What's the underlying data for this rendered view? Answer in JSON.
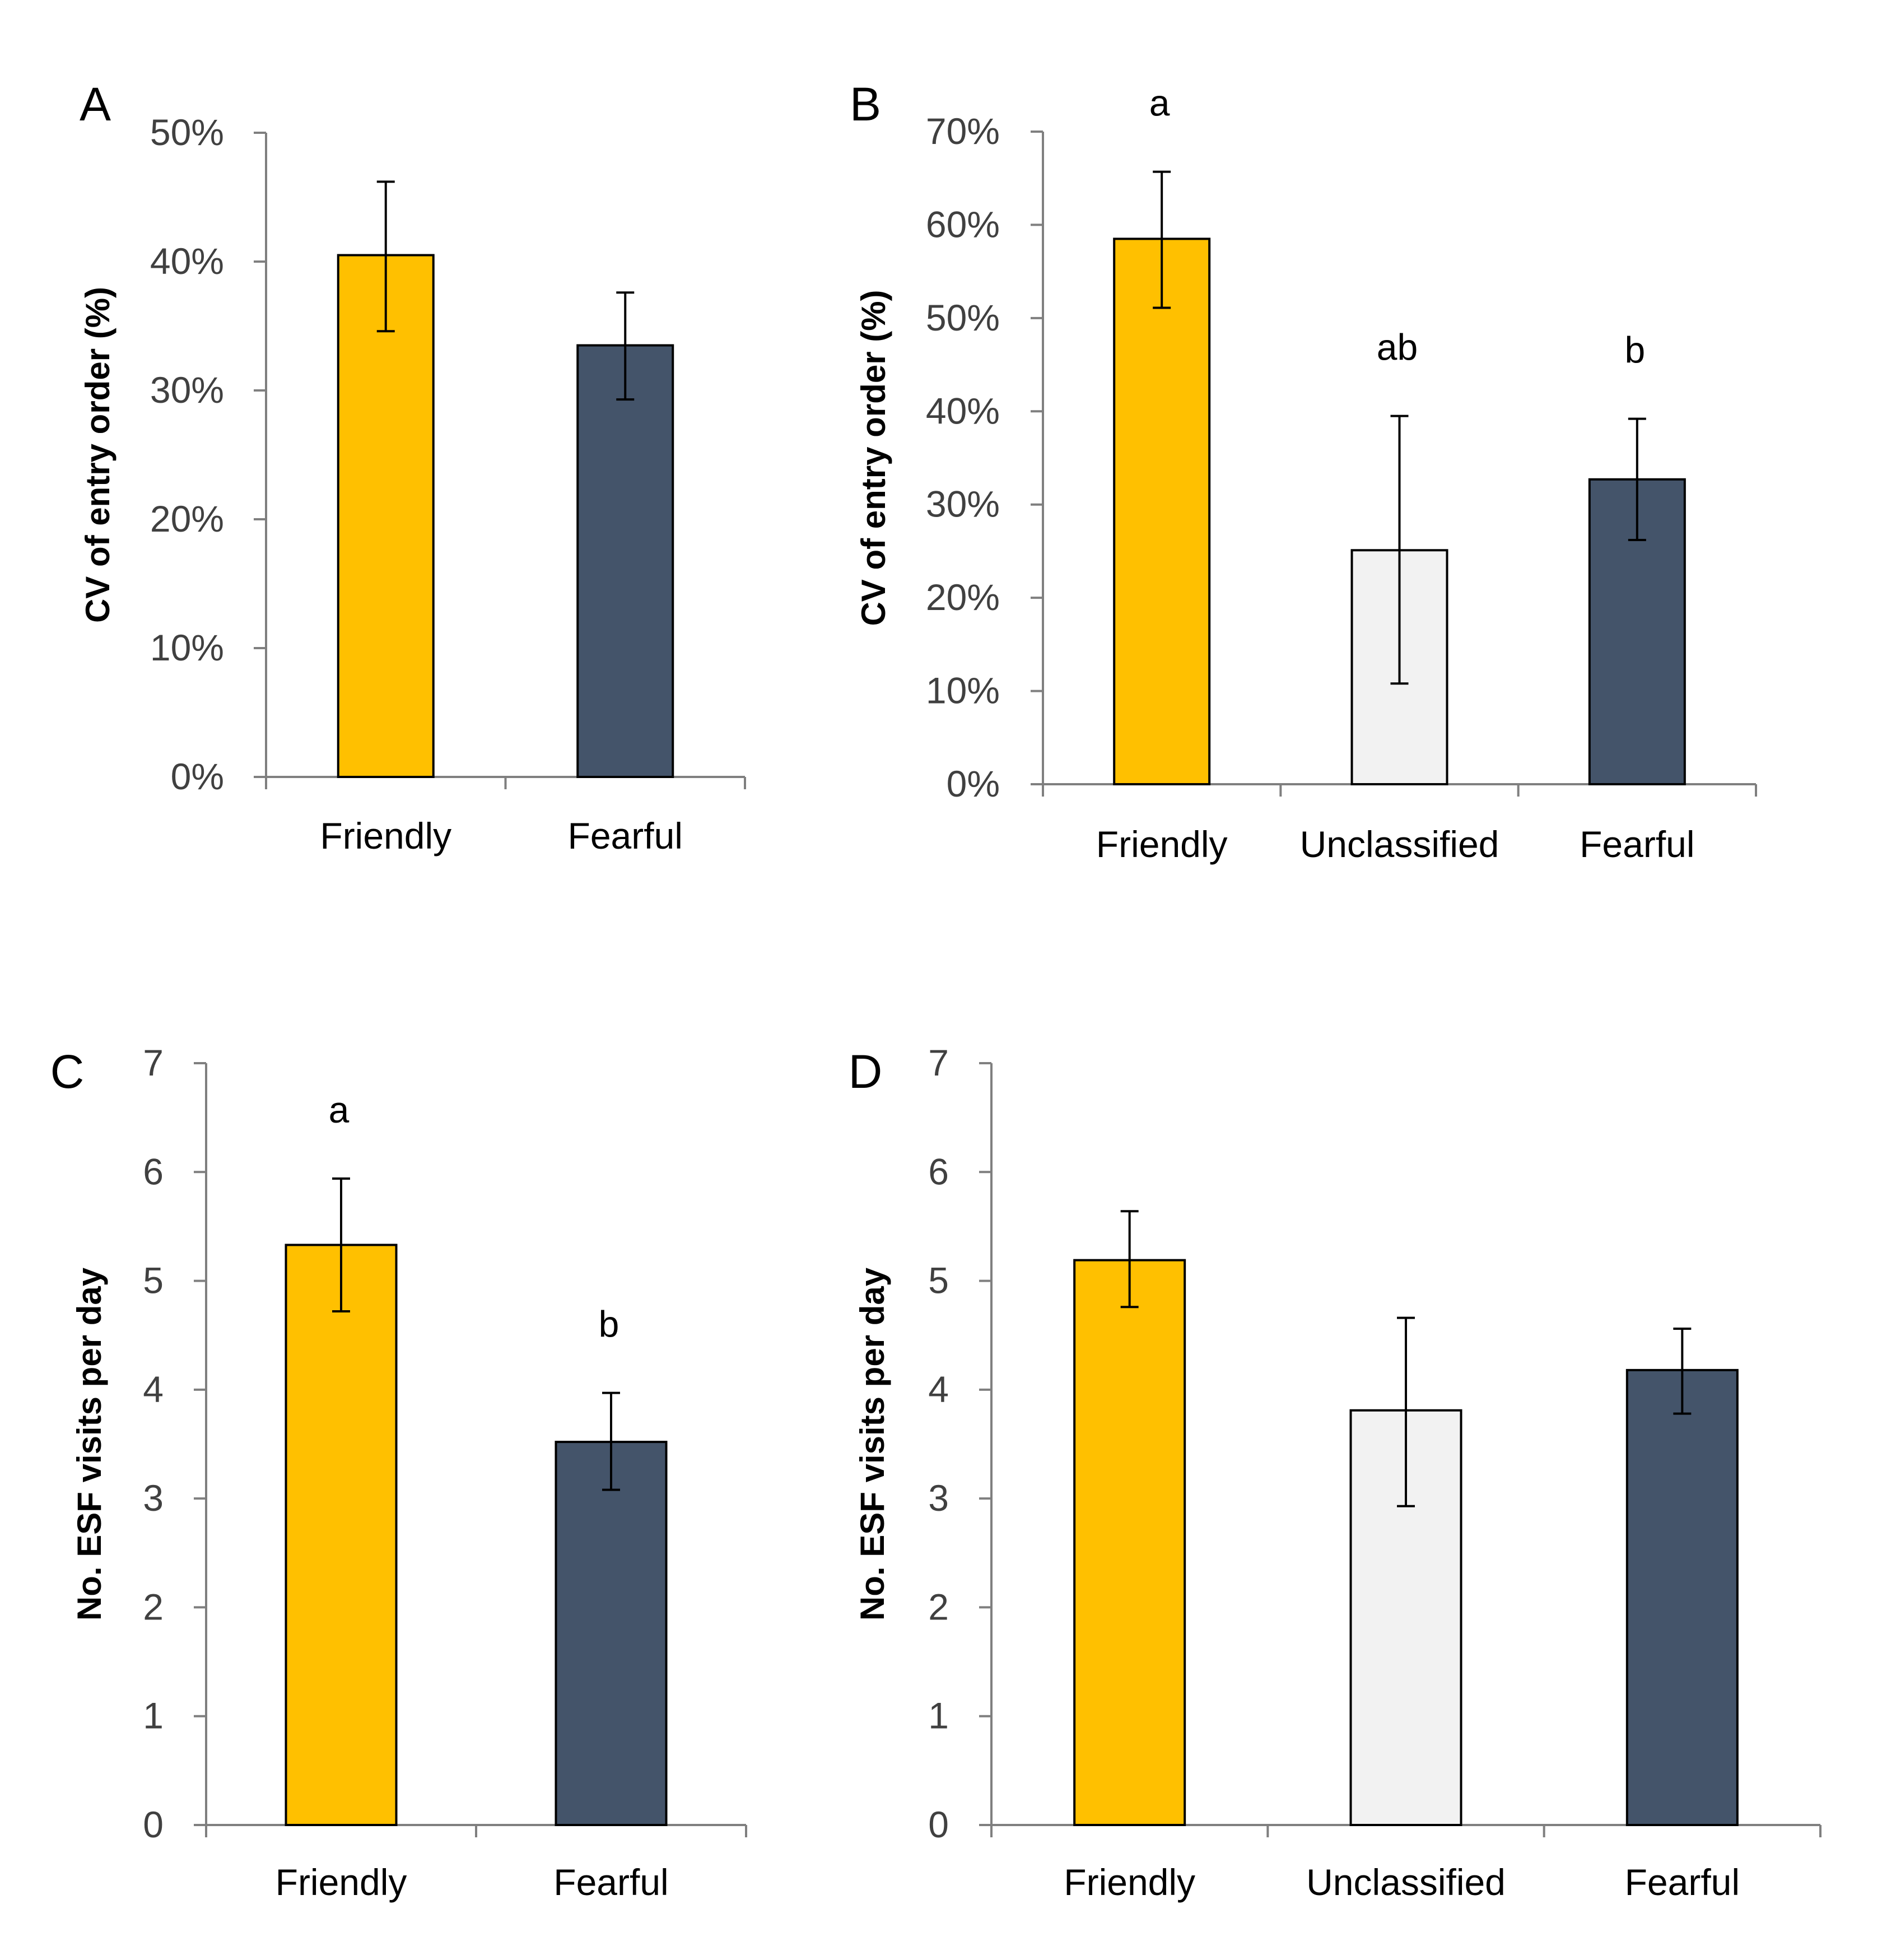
{
  "chart_data": [
    {
      "panel": "A",
      "type": "bar",
      "ylabel": "CV of entry order (%)",
      "ylim": [
        0,
        50
      ],
      "yticks": [
        0,
        10,
        20,
        30,
        40,
        50
      ],
      "ytick_labels": [
        "0%",
        "10%",
        "20%",
        "30%",
        "40%",
        "50%"
      ],
      "categories": [
        "Friendly",
        "Fearful"
      ],
      "values": [
        40.5,
        33.5
      ],
      "err_low": [
        34.6,
        29.3
      ],
      "err_high": [
        46.2,
        37.6
      ],
      "colors": [
        "#FFC000",
        "#44546A"
      ],
      "sig_letters": [
        "",
        ""
      ]
    },
    {
      "panel": "B",
      "type": "bar",
      "ylabel": "CV of entry order (%)",
      "ylim": [
        0,
        70
      ],
      "yticks": [
        0,
        10,
        20,
        30,
        40,
        50,
        60,
        70
      ],
      "ytick_labels": [
        "0%",
        "10%",
        "20%",
        "30%",
        "40%",
        "50%",
        "60%",
        "70%"
      ],
      "categories": [
        "Friendly",
        "Unclassified",
        "Fearful"
      ],
      "values": [
        58.5,
        25.1,
        32.7
      ],
      "err_low": [
        51.1,
        10.8,
        26.2
      ],
      "err_high": [
        65.7,
        39.5,
        39.2
      ],
      "colors": [
        "#FFC000",
        "#F2F2F2",
        "#44546A"
      ],
      "sig_letters": [
        "a",
        "ab",
        "b"
      ]
    },
    {
      "panel": "C",
      "type": "bar",
      "ylabel": "No. ESF visits per day",
      "ylim": [
        0,
        7
      ],
      "yticks": [
        0,
        1,
        2,
        3,
        4,
        5,
        6,
        7
      ],
      "ytick_labels": [
        "0",
        "1",
        "2",
        "3",
        "4",
        "5",
        "6",
        "7"
      ],
      "categories": [
        "Friendly",
        "Fearful"
      ],
      "values": [
        5.33,
        3.52
      ],
      "err_low": [
        4.72,
        3.08
      ],
      "err_high": [
        5.94,
        3.97
      ],
      "colors": [
        "#FFC000",
        "#44546A"
      ],
      "sig_letters": [
        "a",
        "b"
      ]
    },
    {
      "panel": "D",
      "type": "bar",
      "ylabel": "No. ESF visits per day",
      "ylim": [
        0,
        7
      ],
      "yticks": [
        0,
        1,
        2,
        3,
        4,
        5,
        6,
        7
      ],
      "ytick_labels": [
        "0",
        "1",
        "2",
        "3",
        "4",
        "5",
        "6",
        "7"
      ],
      "categories": [
        "Friendly",
        "Unclassified",
        "Fearful"
      ],
      "values": [
        5.19,
        3.81,
        4.18
      ],
      "err_low": [
        4.76,
        2.93,
        3.78
      ],
      "err_high": [
        5.64,
        4.66,
        4.56
      ],
      "colors": [
        "#FFC000",
        "#F2F2F2",
        "#44546A"
      ],
      "sig_letters": [
        "",
        "",
        ""
      ]
    }
  ]
}
